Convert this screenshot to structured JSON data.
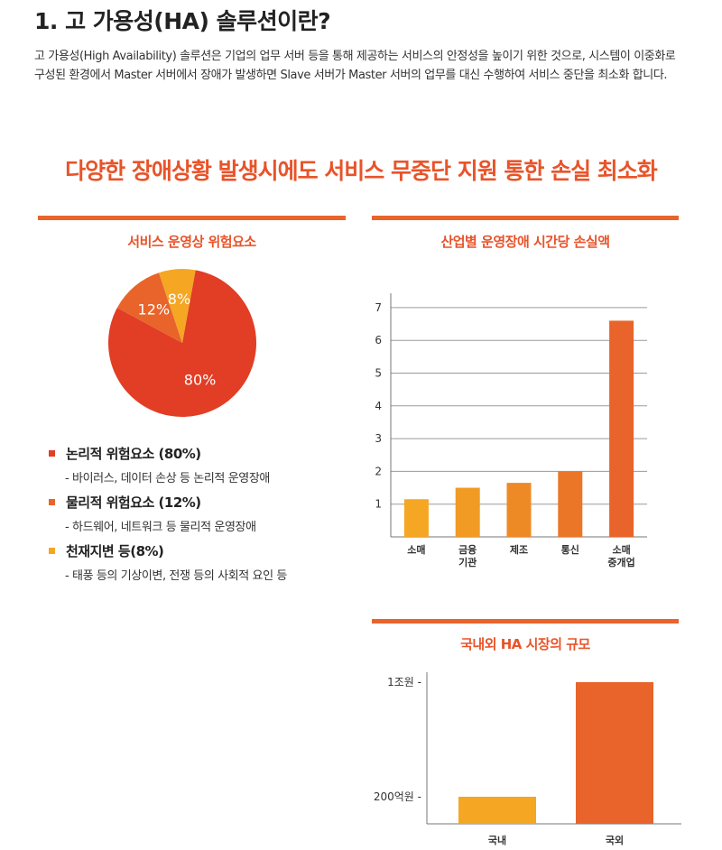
{
  "header": {
    "title": "1. 고 가용성(HA) 솔루션이란?",
    "intro": "고 가용성(High Availability) 솔루션은 기업의 업무 서버 등을 통해 제공하는 서비스의 안정성을 높이기 위한 것으로, 시스템이 이중화로 구성된 환경에서 Master 서버에서 장애가 발생하면 Slave 서버가 Master 서버의 업무를 대신 수행하여 서비스 중단을 최소화 합니다."
  },
  "headline": "다양한 장애상황 발생시에도 서비스 무중단 지원 통한 손실 최소화",
  "colors": {
    "accent": "#e8542a",
    "red": "#e23d25",
    "orange": "#e8642a",
    "yellow": "#f5a623"
  },
  "risk_legend": [
    {
      "title": "논리적 위험요소 (80%)",
      "desc": "- 바이러스, 데이터 손상 등 논리적 운영장애",
      "color": "#e23d25"
    },
    {
      "title": "물리적 위험요소 (12%)",
      "desc": "- 하드웨어, 네트워크 등 물리적 운영장애",
      "color": "#e8642a"
    },
    {
      "title": "천재지변 등(8%)",
      "desc": "- 태풍 등의 기상이변, 전쟁 등의 사회적 요인 등",
      "color": "#f5a623"
    }
  ],
  "chart_data": [
    {
      "type": "pie",
      "title": "서비스 운영상 위험요소",
      "slices": [
        {
          "label": "80%",
          "value": 80,
          "color": "#e23d25"
        },
        {
          "label": "12%",
          "value": 12,
          "color": "#e8642a"
        },
        {
          "label": "8%",
          "value": 8,
          "color": "#f5a623"
        }
      ]
    },
    {
      "type": "bar",
      "title": "산업별 운영장애 시간당 손실액",
      "categories": [
        [
          "소매"
        ],
        [
          "금융",
          "기관"
        ],
        [
          "제조"
        ],
        [
          "통신"
        ],
        [
          "소매",
          "중개업"
        ]
      ],
      "values": [
        1.15,
        1.5,
        1.65,
        2.0,
        6.6
      ],
      "colors": [
        "#f5a623",
        "#f19a24",
        "#ee8a26",
        "#eb7628",
        "#e8642a"
      ],
      "yticks": [
        1,
        2,
        3,
        4,
        5,
        6,
        7
      ],
      "ylim": [
        0,
        7.3
      ],
      "grid": true
    },
    {
      "type": "bar",
      "title": "국내외 HA 시장의 규모",
      "categories": [
        "국내",
        "국외"
      ],
      "values": [
        0.02,
        1.0
      ],
      "colors": [
        "#f5a623",
        "#e8642a"
      ],
      "yticks": [
        {
          "value": 0.02,
          "label": "200억원 -"
        },
        {
          "value": 1.0,
          "label": "1조원 -"
        }
      ]
    }
  ]
}
